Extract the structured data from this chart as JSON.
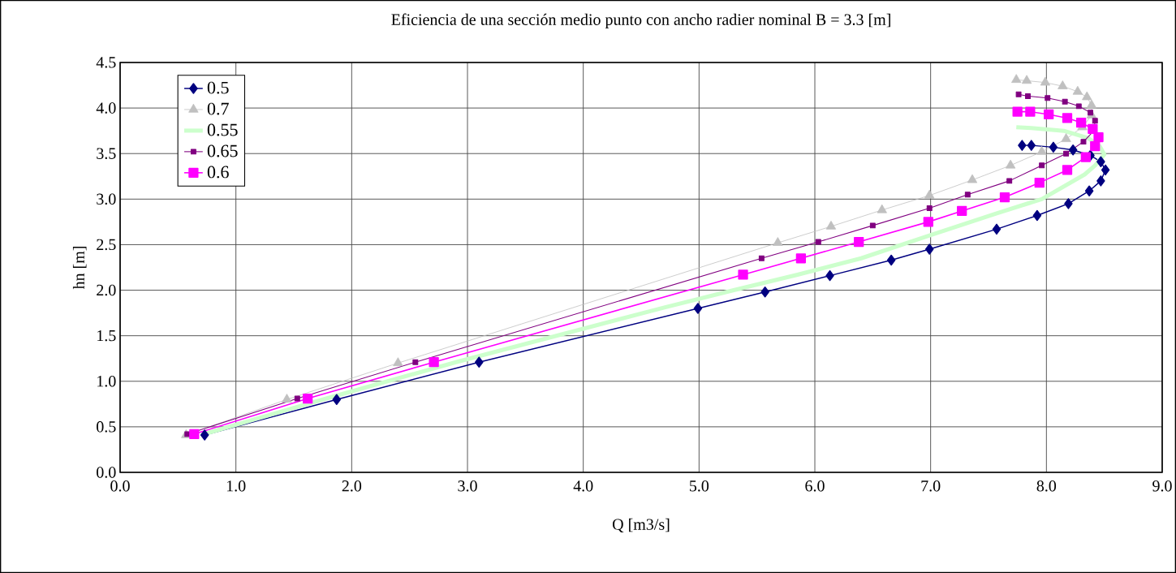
{
  "chart_data": {
    "type": "line",
    "title": "Eficiencia de una sección medio punto con ancho radier nominal B = 3.3 [m]",
    "xlabel": "Q [m3/s]",
    "ylabel": "hn [m]",
    "xlim": [
      0,
      9
    ],
    "ylim": [
      0,
      4.5
    ],
    "xticks": [
      {
        "value": 0,
        "label": "0.0"
      },
      {
        "value": 1,
        "label": "1.0"
      },
      {
        "value": 2,
        "label": "2.0"
      },
      {
        "value": 3,
        "label": "3.0"
      },
      {
        "value": 4,
        "label": "4.0"
      },
      {
        "value": 5,
        "label": "5.0"
      },
      {
        "value": 6,
        "label": "6.0"
      },
      {
        "value": 7,
        "label": "7.0"
      },
      {
        "value": 8,
        "label": "8.0"
      },
      {
        "value": 9,
        "label": "9.0"
      }
    ],
    "yticks": [
      {
        "value": 0,
        "label": "0.0"
      },
      0.5,
      {
        "value": 1,
        "label": "1.0"
      },
      1.5,
      {
        "value": 2,
        "label": "2.0"
      },
      2.5,
      {
        "value": 3,
        "label": "3.0"
      },
      3.5,
      {
        "value": 4,
        "label": "4.0"
      },
      4.5
    ],
    "grid": true,
    "legend": "top left",
    "series": [
      {
        "name": "0.5",
        "color": "#000080",
        "marker": "diamond",
        "x": [
          0.73,
          1.87,
          3.1,
          4.99,
          5.57,
          6.13,
          6.66,
          6.99,
          7.57,
          7.92,
          8.19,
          8.37,
          8.47,
          8.51,
          8.47,
          8.38,
          8.23,
          8.06,
          7.87,
          7.79
        ],
        "values": [
          0.41,
          0.8,
          1.21,
          1.8,
          1.98,
          2.16,
          2.33,
          2.45,
          2.67,
          2.82,
          2.95,
          3.09,
          3.2,
          3.32,
          3.41,
          3.48,
          3.54,
          3.57,
          3.59,
          3.59
        ]
      },
      {
        "name": "0.7",
        "color": "#c0c0c0",
        "marker": "triangle",
        "x": [
          0.57,
          1.44,
          2.4,
          5.68,
          6.14,
          6.58,
          6.99,
          7.36,
          7.69,
          7.96,
          8.17,
          8.31,
          8.39,
          8.39,
          8.35,
          8.27,
          8.14,
          7.99,
          7.83,
          7.74
        ],
        "values": [
          0.41,
          0.8,
          1.2,
          2.52,
          2.7,
          2.88,
          3.04,
          3.21,
          3.37,
          3.52,
          3.66,
          3.79,
          3.92,
          4.03,
          4.12,
          4.18,
          4.24,
          4.28,
          4.3,
          4.31
        ]
      },
      {
        "name": "0.55",
        "color": "#ccffcc",
        "marker": "none",
        "x": [
          0.7,
          1.75,
          2.9,
          4.7,
          5.3,
          5.85,
          6.4,
          6.99,
          7.56,
          7.96,
          8.33,
          8.42,
          8.5,
          8.46,
          8.36,
          8.15,
          7.87,
          7.74
        ],
        "values": [
          0.41,
          0.8,
          1.21,
          1.81,
          2.0,
          2.17,
          2.35,
          2.6,
          2.84,
          3.0,
          3.27,
          3.37,
          3.49,
          3.58,
          3.67,
          3.75,
          3.78,
          3.79
        ]
      },
      {
        "name": "0.65",
        "color": "#800080",
        "marker": "square",
        "x": [
          0.58,
          1.53,
          2.55,
          5.54,
          6.03,
          6.5,
          6.99,
          7.32,
          7.68,
          7.96,
          8.17,
          8.32,
          8.41,
          8.42,
          8.38,
          8.28,
          8.16,
          8.01,
          7.84,
          7.76
        ],
        "values": [
          0.42,
          0.81,
          1.21,
          2.35,
          2.53,
          2.71,
          2.9,
          3.05,
          3.2,
          3.37,
          3.5,
          3.63,
          3.75,
          3.86,
          3.95,
          4.02,
          4.07,
          4.11,
          4.13,
          4.15
        ]
      },
      {
        "name": "0.6",
        "color": "#ff00ff",
        "marker": "square",
        "x": [
          0.64,
          1.62,
          2.71,
          5.38,
          5.88,
          6.38,
          6.98,
          7.27,
          7.64,
          7.94,
          8.18,
          8.34,
          8.42,
          8.45,
          8.4,
          8.3,
          8.18,
          8.02,
          7.86,
          7.75
        ],
        "values": [
          0.42,
          0.81,
          1.21,
          2.17,
          2.35,
          2.53,
          2.75,
          2.87,
          3.02,
          3.18,
          3.32,
          3.46,
          3.58,
          3.68,
          3.77,
          3.84,
          3.89,
          3.93,
          3.96,
          3.96
        ]
      }
    ]
  }
}
